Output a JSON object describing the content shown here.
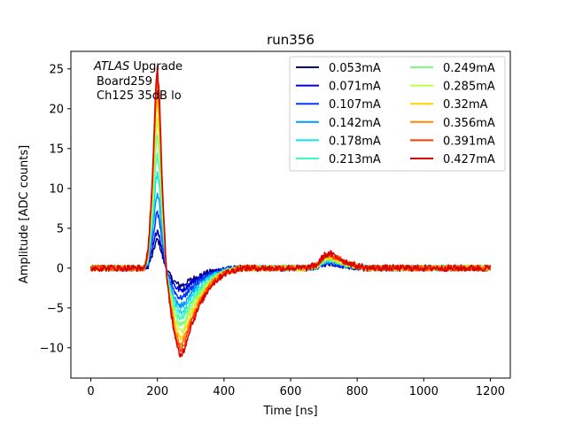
{
  "chart_data": {
    "type": "line",
    "title": "run356",
    "xlabel": "Time [ns]",
    "ylabel": "Amplitude [ADC counts]",
    "xlim": [
      -60,
      1260
    ],
    "ylim": [
      -13.8,
      27.2
    ],
    "xticks": [
      0,
      200,
      400,
      600,
      800,
      1000,
      1200
    ],
    "yticks": [
      -10,
      -5,
      0,
      5,
      10,
      15,
      20,
      25
    ],
    "xtick_labels": [
      "0",
      "200",
      "400",
      "600",
      "800",
      "1000",
      "1200"
    ],
    "ytick_labels": [
      "−10",
      "−5",
      "0",
      "5",
      "10",
      "15",
      "20",
      "25"
    ],
    "grid": false,
    "legend_location": "upper right",
    "legend_columns": 2,
    "annotation": {
      "line1_italic": "ATLAS",
      "line1_rest": " Upgrade",
      "line2": "Board259",
      "line3": "Ch125 35dB lo"
    },
    "shape_points_x": [
      0,
      160,
      172,
      185,
      195,
      200,
      206,
      215,
      228,
      240,
      255,
      268,
      280,
      300,
      330,
      360,
      400,
      450,
      500,
      600,
      650,
      680,
      700,
      720,
      760,
      800,
      1000,
      1200
    ],
    "shape_points_y": [
      0,
      0,
      0.08,
      0.45,
      0.9,
      1.0,
      0.85,
      0.4,
      -0.05,
      -0.22,
      -0.38,
      -0.45,
      -0.42,
      -0.3,
      -0.18,
      -0.09,
      -0.03,
      0,
      0,
      0,
      0,
      0.02,
      0.07,
      0.08,
      0.04,
      0.01,
      0,
      0
    ],
    "series": [
      {
        "name": "0.053mA",
        "color": "#00007f",
        "peak": 3.6,
        "trough": -2.2,
        "hump": 0.6,
        "noise": 0.6
      },
      {
        "name": "0.071mA",
        "color": "#0000d9",
        "peak": 4.8,
        "trough": -2.8,
        "hump": 0.7,
        "noise": 0.6
      },
      {
        "name": "0.107mA",
        "color": "#0039ff",
        "peak": 7.0,
        "trough": -3.8,
        "hump": 0.8,
        "noise": 0.6
      },
      {
        "name": "0.142mA",
        "color": "#0098ff",
        "peak": 9.5,
        "trough": -4.8,
        "hump": 0.9,
        "noise": 0.6
      },
      {
        "name": "0.178mA",
        "color": "#10e0e7",
        "peak": 12.0,
        "trough": -5.6,
        "hump": 1.0,
        "noise": 0.6
      },
      {
        "name": "0.213mA",
        "color": "#3dffba",
        "peak": 14.5,
        "trough": -6.4,
        "hump": 1.1,
        "noise": 0.6
      },
      {
        "name": "0.249mA",
        "color": "#7aff7d",
        "peak": 16.8,
        "trough": -7.2,
        "hump": 1.2,
        "noise": 0.6
      },
      {
        "name": "0.285mA",
        "color": "#baff3d",
        "peak": 19.0,
        "trough": -8.0,
        "hump": 1.3,
        "noise": 0.6
      },
      {
        "name": "0.32mA",
        "color": "#ffd200",
        "peak": 21.0,
        "trough": -8.8,
        "hump": 1.4,
        "noise": 0.6
      },
      {
        "name": "0.356mA",
        "color": "#ff8600",
        "peak": 22.8,
        "trough": -9.6,
        "hump": 1.6,
        "noise": 0.6
      },
      {
        "name": "0.391mA",
        "color": "#ff3a00",
        "peak": 24.0,
        "trough": -10.4,
        "hump": 1.7,
        "noise": 0.6
      },
      {
        "name": "0.427mA",
        "color": "#d90000",
        "peak": 25.0,
        "trough": -11.0,
        "hump": 1.8,
        "noise": 0.7
      }
    ]
  }
}
